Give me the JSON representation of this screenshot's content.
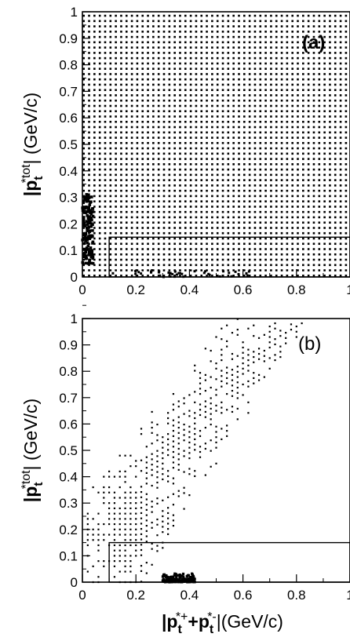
{
  "chart_data": [
    {
      "type": "scatter",
      "panel_label": "(a)",
      "panel_label_style": "bold",
      "xlim": [
        0,
        1
      ],
      "ylim": [
        0,
        1
      ],
      "x_ticks": [
        "0",
        "0.2",
        "0.4",
        "0.6",
        "0.8",
        "1"
      ],
      "y_ticks": [
        "0",
        "0.1",
        "0.2",
        "0.3",
        "0.4",
        "0.5",
        "0.6",
        "0.7",
        "0.8",
        "0.9",
        "1"
      ],
      "ylabel": {
        "main": "|p",
        "sub": "t",
        "sup": "*tot",
        "end": "| (GeV/c)"
      },
      "xlabel": null,
      "distribution": "uniform-dense-grid",
      "grid_step": 0.02,
      "dense_region": {
        "x": [
          0,
          0.04
        ],
        "y": [
          0.05,
          0.32
        ]
      },
      "cut_box": {
        "x": [
          0.1,
          1.0
        ],
        "y": [
          0,
          0.15
        ]
      }
    },
    {
      "type": "scatter",
      "panel_label": "(b)",
      "panel_label_style": "normal",
      "xlim": [
        0,
        1
      ],
      "ylim": [
        0,
        1
      ],
      "x_ticks": [
        "0",
        "0.2",
        "0.4",
        "0.6",
        "0.8",
        "1"
      ],
      "y_ticks": [
        "0",
        "0.1",
        "0.2",
        "0.3",
        "0.4",
        "0.5",
        "0.6",
        "0.7",
        "0.8",
        "0.9",
        "1"
      ],
      "ylabel": {
        "main": "|p",
        "sub": "t",
        "sup": "*tot",
        "end": "| (GeV/c)"
      },
      "xlabel": {
        "main": "|p",
        "sub1": "t",
        "sup1": "*+",
        "plus": "+p",
        "sub2": "t",
        "sup2": "*-",
        "end": "|(GeV/c)"
      },
      "distribution": "sparse-diagonal-band",
      "grid_step": 0.02,
      "band": {
        "lower_slope": 1.6,
        "lower_offset": -0.35,
        "upper_slope": 1.3,
        "upper_offset": 0.32,
        "x_range": [
          0.02,
          1.0
        ]
      },
      "peak_region": {
        "x": [
          0.3,
          0.42
        ],
        "y": [
          0,
          0.04
        ]
      },
      "cut_box": {
        "x": [
          0.1,
          1.0
        ],
        "y": [
          0,
          0.15
        ]
      }
    }
  ]
}
